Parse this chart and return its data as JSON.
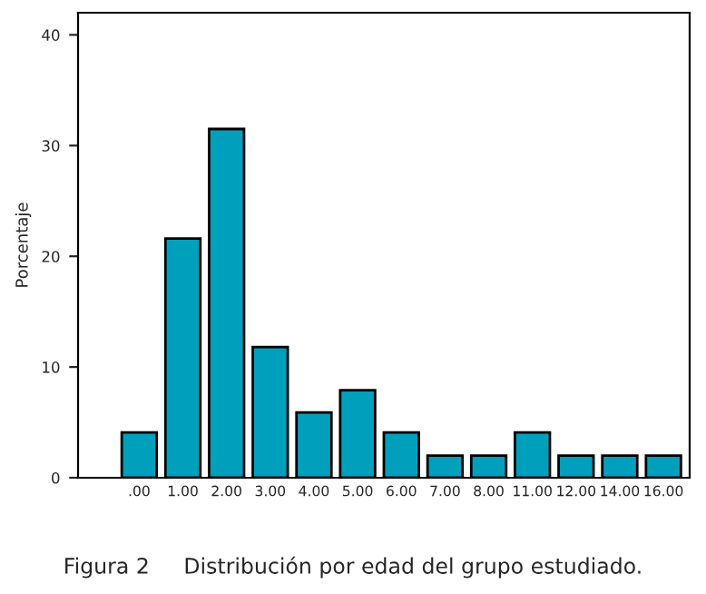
{
  "chart_data": {
    "type": "bar",
    "ylabel": "Porcentaje",
    "categories": [
      ".00",
      "1.00",
      "2.00",
      "3.00",
      "4.00",
      "5.00",
      "6.00",
      "7.00",
      "8.00",
      "11.00",
      "12.00",
      "14.00",
      "16.00"
    ],
    "values": [
      4.1,
      21.6,
      31.5,
      11.8,
      5.9,
      7.9,
      4.1,
      2.0,
      2.0,
      4.1,
      2.0,
      2.0,
      2.0
    ],
    "color": "#00a0bc",
    "ylim": [
      0,
      42
    ],
    "yticks": [
      0,
      10,
      20,
      30,
      40
    ],
    "grid": false,
    "annotations": [
      "Figura 2     Distribución por edad del grupo estudiado."
    ]
  }
}
